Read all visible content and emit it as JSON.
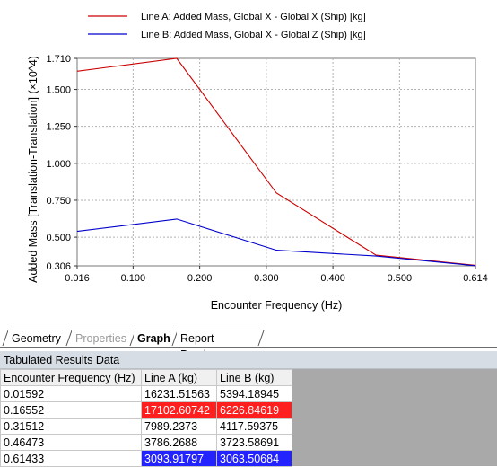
{
  "chart_data": {
    "type": "line",
    "xlabel": "Encounter Frequency (Hz)",
    "ylabel": "Added Mass [Translation-Translation] (×10^4)",
    "xlim": [
      0.016,
      0.614
    ],
    "ylim": [
      0.306,
      1.71
    ],
    "xticks": [
      "0.016",
      "0.100",
      "0.200",
      "0.300",
      "0.400",
      "0.500",
      "0.614"
    ],
    "yticks": [
      "0.306",
      "0.500",
      "0.750",
      "1.000",
      "1.250",
      "1.500",
      "1.710"
    ],
    "grid": true,
    "legend_position": "top",
    "series": [
      {
        "name": "Line A: Added Mass, Global X - Global X (Ship) [kg]",
        "color": "#cc0000",
        "x": [
          0.01592,
          0.16552,
          0.31512,
          0.46473,
          0.61433
        ],
        "y": [
          1.623152,
          1.710261,
          0.798924,
          0.378627,
          0.309392
        ]
      },
      {
        "name": "Line B: Added Mass, Global X - Global Z (Ship) [kg]",
        "color": "#0000cc",
        "x": [
          0.01592,
          0.16552,
          0.31512,
          0.46473,
          0.61433
        ],
        "y": [
          0.539419,
          0.622685,
          0.41176,
          0.372359,
          0.306351
        ]
      }
    ]
  },
  "tabs": [
    {
      "label": "Geometry",
      "state": "normal"
    },
    {
      "label": "Properties",
      "state": "disabled"
    },
    {
      "label": "Graph",
      "state": "active"
    },
    {
      "label": "Report Preview",
      "state": "normal"
    }
  ],
  "results": {
    "title": "Tabulated Results Data",
    "columns": [
      "Encounter Frequency (Hz)",
      "Line A (kg)",
      "Line B (kg)"
    ],
    "rows": [
      {
        "cells": [
          "0.01592",
          "16231.51563",
          "5394.18945"
        ],
        "highlight": ""
      },
      {
        "cells": [
          "0.16552",
          "17102.60742",
          "6226.84619"
        ],
        "highlight": "max"
      },
      {
        "cells": [
          "0.31512",
          "7989.2373",
          "4117.59375"
        ],
        "highlight": ""
      },
      {
        "cells": [
          "0.46473",
          "3786.2688",
          "3723.58691"
        ],
        "highlight": ""
      },
      {
        "cells": [
          "0.61433",
          "3093.91797",
          "3063.50684"
        ],
        "highlight": "min"
      }
    ],
    "highlight_colors": {
      "max": "#ff1f1f",
      "min": "#2323ff"
    }
  }
}
